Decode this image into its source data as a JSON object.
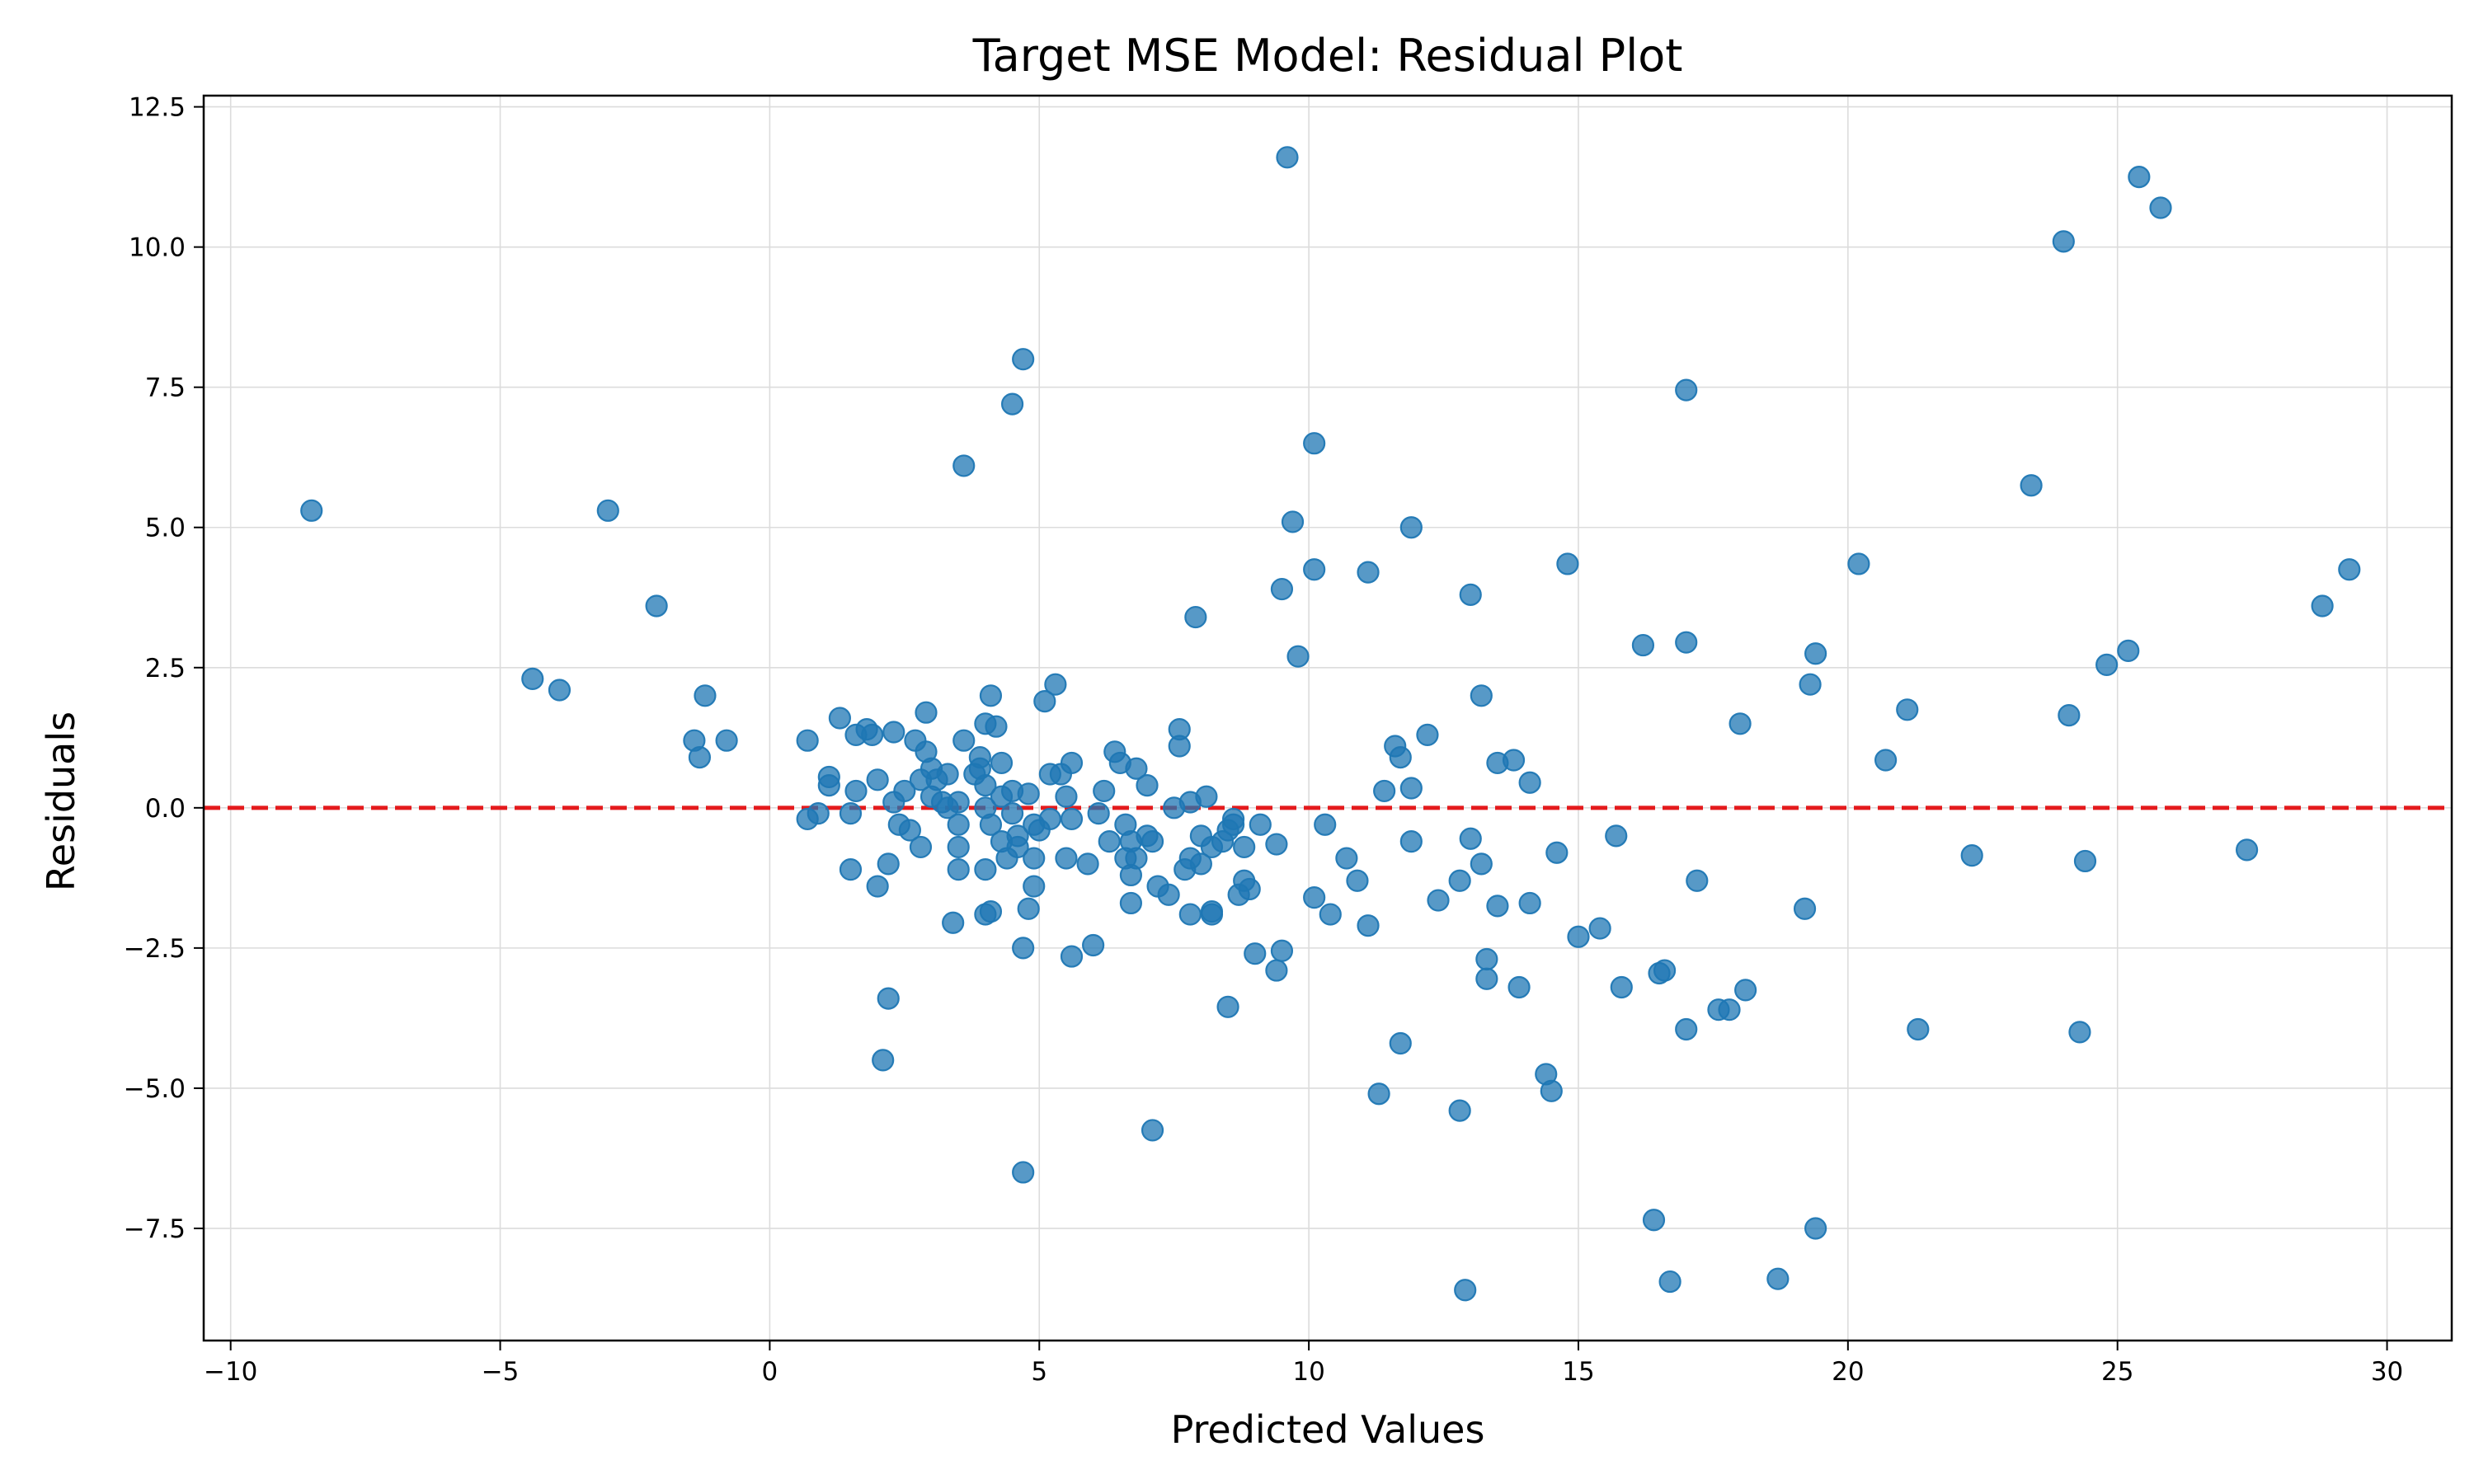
{
  "chart_data": {
    "type": "scatter",
    "title": "Target MSE Model: Residual Plot",
    "xlabel": "Predicted Values",
    "ylabel": "Residuals",
    "xlim": [
      -10.5,
      31.2
    ],
    "ylim": [
      -9.5,
      12.7
    ],
    "x_ticks": [
      -10,
      -5,
      0,
      5,
      10,
      15,
      20,
      25,
      30
    ],
    "x_tick_labels": [
      "−10",
      "−5",
      "0",
      "5",
      "10",
      "15",
      "20",
      "25",
      "30"
    ],
    "y_ticks": [
      -7.5,
      -5.0,
      -2.5,
      0.0,
      2.5,
      5.0,
      7.5,
      10.0,
      12.5
    ],
    "y_tick_labels": [
      "−7.5",
      "−5.0",
      "−2.5",
      "0.0",
      "2.5",
      "5.0",
      "7.5",
      "10.0",
      "12.5"
    ],
    "grid": true,
    "reference_line": {
      "y": 0,
      "style": "dashed",
      "color": "#e41a1c"
    },
    "marker_color": "#1f77b4",
    "marker_alpha": 0.75,
    "points": [
      [
        -8.5,
        5.3
      ],
      [
        -3.0,
        5.3
      ],
      [
        -2.1,
        3.6
      ],
      [
        -4.4,
        2.3
      ],
      [
        -3.9,
        2.1
      ],
      [
        -1.2,
        2.0
      ],
      [
        -1.4,
        1.2
      ],
      [
        -0.8,
        1.2
      ],
      [
        -1.3,
        0.9
      ],
      [
        0.7,
        1.2
      ],
      [
        1.1,
        0.55
      ],
      [
        1.1,
        0.4
      ],
      [
        0.9,
        -0.1
      ],
      [
        0.7,
        -0.2
      ],
      [
        1.3,
        1.6
      ],
      [
        1.6,
        1.3
      ],
      [
        1.8,
        1.4
      ],
      [
        1.9,
        1.3
      ],
      [
        1.5,
        -0.1
      ],
      [
        1.5,
        -1.1
      ],
      [
        1.6,
        0.3
      ],
      [
        2.0,
        0.5
      ],
      [
        2.0,
        -1.4
      ],
      [
        2.2,
        -1.0
      ],
      [
        2.3,
        1.35
      ],
      [
        2.3,
        0.1
      ],
      [
        2.4,
        -0.3
      ],
      [
        2.5,
        0.3
      ],
      [
        2.6,
        -0.4
      ],
      [
        2.7,
        1.2
      ],
      [
        2.8,
        0.5
      ],
      [
        2.8,
        -0.7
      ],
      [
        2.9,
        1.7
      ],
      [
        2.9,
        1.0
      ],
      [
        3.0,
        0.2
      ],
      [
        3.0,
        0.7
      ],
      [
        3.1,
        0.5
      ],
      [
        3.2,
        0.1
      ],
      [
        3.3,
        0.0
      ],
      [
        3.3,
        0.6
      ],
      [
        3.5,
        0.1
      ],
      [
        3.4,
        -2.05
      ],
      [
        3.6,
        1.2
      ],
      [
        3.5,
        -0.3
      ],
      [
        3.5,
        -0.7
      ],
      [
        3.5,
        -1.1
      ],
      [
        3.8,
        0.6
      ],
      [
        3.9,
        0.9
      ],
      [
        3.9,
        0.7
      ],
      [
        4.0,
        0.4
      ],
      [
        4.0,
        1.5
      ],
      [
        4.1,
        2.0
      ],
      [
        4.0,
        0.0
      ],
      [
        4.1,
        -0.3
      ],
      [
        4.0,
        -1.1
      ],
      [
        4.0,
        -1.9
      ],
      [
        4.1,
        -1.85
      ],
      [
        4.2,
        1.45
      ],
      [
        4.3,
        0.8
      ],
      [
        4.3,
        0.2
      ],
      [
        4.3,
        -0.6
      ],
      [
        4.4,
        -0.9
      ],
      [
        4.5,
        0.3
      ],
      [
        4.5,
        -0.1
      ],
      [
        4.6,
        -0.5
      ],
      [
        4.6,
        -0.7
      ],
      [
        4.7,
        -2.5
      ],
      [
        4.8,
        -1.8
      ],
      [
        4.8,
        0.25
      ],
      [
        4.9,
        -0.3
      ],
      [
        5.0,
        -0.4
      ],
      [
        4.9,
        -0.9
      ],
      [
        4.9,
        -1.4
      ],
      [
        5.1,
        1.9
      ],
      [
        5.2,
        0.6
      ],
      [
        5.2,
        -0.2
      ],
      [
        5.3,
        2.2
      ],
      [
        5.4,
        0.6
      ],
      [
        5.5,
        0.2
      ],
      [
        5.6,
        -0.2
      ],
      [
        5.6,
        0.8
      ],
      [
        5.5,
        -0.9
      ],
      [
        5.6,
        -2.65
      ],
      [
        5.9,
        -1.0
      ],
      [
        6.0,
        -2.45
      ],
      [
        6.1,
        -0.1
      ],
      [
        6.2,
        0.3
      ],
      [
        6.3,
        -0.6
      ],
      [
        6.4,
        1.0
      ],
      [
        6.5,
        0.8
      ],
      [
        6.6,
        -0.3
      ],
      [
        6.6,
        -0.9
      ],
      [
        6.7,
        -0.6
      ],
      [
        6.7,
        -1.2
      ],
      [
        6.7,
        -1.7
      ],
      [
        6.8,
        0.7
      ],
      [
        6.8,
        -0.9
      ],
      [
        7.0,
        0.4
      ],
      [
        7.0,
        -0.5
      ],
      [
        7.1,
        -0.6
      ],
      [
        7.2,
        -1.4
      ],
      [
        7.4,
        -1.55
      ],
      [
        7.5,
        0.0
      ],
      [
        7.6,
        1.4
      ],
      [
        7.6,
        1.1
      ],
      [
        7.7,
        -1.1
      ],
      [
        7.8,
        0.1
      ],
      [
        7.8,
        -0.9
      ],
      [
        7.8,
        -1.9
      ],
      [
        8.0,
        -0.5
      ],
      [
        8.0,
        -1.0
      ],
      [
        8.1,
        0.2
      ],
      [
        8.2,
        -0.7
      ],
      [
        8.2,
        -1.9
      ],
      [
        8.2,
        -1.85
      ],
      [
        8.4,
        -0.6
      ],
      [
        8.5,
        -0.4
      ],
      [
        8.6,
        -0.2
      ],
      [
        8.6,
        -0.3
      ],
      [
        8.7,
        -1.55
      ],
      [
        8.8,
        -0.7
      ],
      [
        8.8,
        -1.3
      ],
      [
        8.9,
        -1.45
      ],
      [
        9.0,
        -2.6
      ],
      [
        9.1,
        -0.3
      ],
      [
        9.4,
        -0.65
      ],
      [
        9.4,
        -2.9
      ],
      [
        9.5,
        -2.55
      ],
      [
        8.5,
        -3.55
      ],
      [
        4.7,
        8.0
      ],
      [
        4.5,
        7.2
      ],
      [
        3.6,
        6.1
      ],
      [
        2.2,
        -3.4
      ],
      [
        2.1,
        -4.5
      ],
      [
        4.7,
        -6.5
      ],
      [
        7.1,
        -5.75
      ],
      [
        7.9,
        3.4
      ],
      [
        9.6,
        11.6
      ],
      [
        10.1,
        6.5
      ],
      [
        9.7,
        5.1
      ],
      [
        9.5,
        3.9
      ],
      [
        9.8,
        2.7
      ],
      [
        10.1,
        4.25
      ],
      [
        10.3,
        -0.3
      ],
      [
        10.1,
        -1.6
      ],
      [
        10.4,
        -1.9
      ],
      [
        10.7,
        -0.9
      ],
      [
        10.9,
        -1.3
      ],
      [
        11.1,
        4.2
      ],
      [
        11.1,
        -2.1
      ],
      [
        11.3,
        -5.1
      ],
      [
        11.4,
        0.3
      ],
      [
        11.6,
        1.1
      ],
      [
        11.7,
        0.9
      ],
      [
        11.7,
        -4.2
      ],
      [
        11.9,
        5.0
      ],
      [
        11.9,
        0.35
      ],
      [
        11.9,
        -0.6
      ],
      [
        12.2,
        1.3
      ],
      [
        12.4,
        -1.65
      ],
      [
        12.8,
        -5.4
      ],
      [
        12.8,
        -1.3
      ],
      [
        12.9,
        -8.6
      ],
      [
        13.0,
        3.8
      ],
      [
        13.0,
        -0.55
      ],
      [
        13.2,
        2.0
      ],
      [
        13.2,
        -1.0
      ],
      [
        13.3,
        -2.7
      ],
      [
        13.3,
        -3.05
      ],
      [
        13.5,
        0.8
      ],
      [
        13.5,
        -1.75
      ],
      [
        13.8,
        0.85
      ],
      [
        13.9,
        -3.2
      ],
      [
        14.1,
        0.45
      ],
      [
        14.1,
        -1.7
      ],
      [
        14.4,
        -4.75
      ],
      [
        14.5,
        -5.05
      ],
      [
        14.6,
        -0.8
      ],
      [
        14.8,
        4.35
      ],
      [
        15.0,
        -2.3
      ],
      [
        15.4,
        -2.15
      ],
      [
        15.7,
        -0.5
      ],
      [
        15.8,
        -3.2
      ],
      [
        16.2,
        2.9
      ],
      [
        16.4,
        -7.35
      ],
      [
        16.5,
        -2.95
      ],
      [
        16.6,
        -2.9
      ],
      [
        16.7,
        -8.45
      ],
      [
        17.0,
        7.45
      ],
      [
        17.0,
        2.95
      ],
      [
        17.0,
        -3.95
      ],
      [
        17.2,
        -1.3
      ],
      [
        17.6,
        -3.6
      ],
      [
        17.8,
        -3.6
      ],
      [
        18.0,
        1.5
      ],
      [
        18.1,
        -3.25
      ],
      [
        18.7,
        -8.4
      ],
      [
        19.2,
        -1.8
      ],
      [
        19.3,
        2.2
      ],
      [
        19.4,
        2.75
      ],
      [
        19.4,
        -7.5
      ],
      [
        20.2,
        4.35
      ],
      [
        20.7,
        0.85
      ],
      [
        21.1,
        1.75
      ],
      [
        21.3,
        -3.95
      ],
      [
        22.3,
        -0.85
      ],
      [
        23.4,
        5.75
      ],
      [
        24.0,
        10.1
      ],
      [
        24.1,
        1.65
      ],
      [
        24.3,
        -4.0
      ],
      [
        24.4,
        -0.95
      ],
      [
        24.8,
        2.55
      ],
      [
        25.2,
        2.8
      ],
      [
        25.4,
        11.25
      ],
      [
        25.8,
        10.7
      ],
      [
        27.4,
        -0.75
      ],
      [
        28.8,
        3.6
      ],
      [
        29.3,
        4.25
      ]
    ]
  }
}
